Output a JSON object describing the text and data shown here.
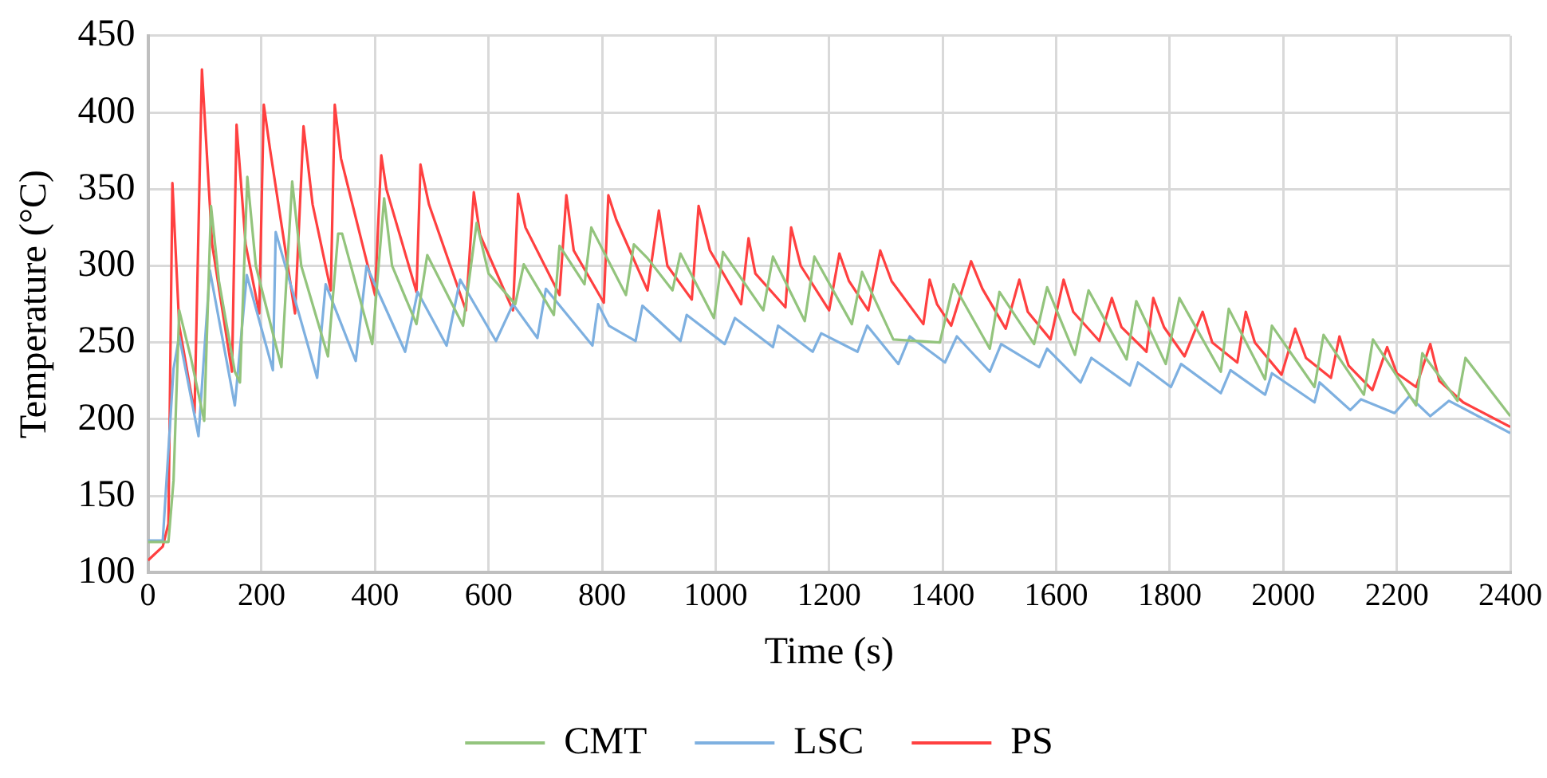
{
  "chart_data": {
    "type": "line",
    "xlabel": "Time (s)",
    "ylabel": "Temperature (°C)",
    "xlim": [
      0,
      2400
    ],
    "xticks": [
      0,
      200,
      400,
      600,
      800,
      1000,
      1200,
      1400,
      1600,
      1800,
      2000,
      2200,
      2400
    ],
    "ylim": [
      100,
      450
    ],
    "yticks": [
      100,
      150,
      200,
      250,
      300,
      350,
      400,
      450
    ],
    "grid": true,
    "legend": "bottom",
    "marker": "none",
    "line_style": "solid",
    "series": [
      {
        "name": "CMT",
        "color": "#93c47d",
        "x": [
          0,
          36,
          45,
          55,
          75,
          99,
          111,
          125,
          153,
          162,
          175,
          190,
          235,
          254,
          270,
          317,
          335,
          342,
          395,
          416,
          430,
          473,
          492,
          555,
          579,
          600,
          647,
          662,
          715,
          725,
          769,
          781,
          842,
          856,
          880,
          924,
          938,
          997,
          1013,
          1084,
          1101,
          1157,
          1174,
          1240,
          1258,
          1313,
          1395,
          1419,
          1483,
          1500,
          1561,
          1584,
          1633,
          1657,
          1724,
          1741,
          1793,
          1817,
          1890,
          1904,
          1968,
          1980,
          2055,
          2071,
          2142,
          2158,
          2234,
          2245,
          2307,
          2321,
          2400
        ],
        "values": [
          120,
          120,
          160,
          271,
          241,
          199,
          339,
          290,
          231,
          224,
          358,
          300,
          234,
          355,
          300,
          241,
          321,
          321,
          249,
          344,
          300,
          262,
          307,
          261,
          328,
          295,
          275,
          301,
          268,
          313,
          288,
          325,
          281,
          314,
          305,
          284,
          308,
          266,
          309,
          271,
          306,
          264,
          306,
          262,
          296,
          252,
          250,
          288,
          246,
          283,
          249,
          286,
          242,
          284,
          239,
          277,
          236,
          279,
          231,
          272,
          226,
          261,
          221,
          255,
          216,
          252,
          209,
          243,
          212,
          240,
          202
        ]
      },
      {
        "name": "LSC",
        "color": "#7eb0e0",
        "x": [
          0,
          26,
          45,
          55,
          89,
          109,
          153,
          174,
          220,
          225,
          298,
          313,
          366,
          385,
          453,
          475,
          526,
          550,
          613,
          643,
          686,
          701,
          783,
          793,
          812,
          859,
          871,
          938,
          949,
          1016,
          1034,
          1101,
          1110,
          1171,
          1186,
          1250,
          1267,
          1322,
          1342,
          1404,
          1425,
          1483,
          1503,
          1570,
          1584,
          1643,
          1662,
          1730,
          1744,
          1802,
          1820,
          1890,
          1907,
          1968,
          1980,
          2055,
          2064,
          2118,
          2137,
          2196,
          2222,
          2259,
          2292,
          2400
        ],
        "values": [
          121,
          121,
          233,
          254,
          189,
          297,
          209,
          294,
          232,
          322,
          227,
          288,
          238,
          300,
          244,
          283,
          248,
          291,
          251,
          275,
          253,
          285,
          248,
          275,
          261,
          251,
          274,
          251,
          268,
          249,
          266,
          247,
          261,
          244,
          256,
          244,
          261,
          236,
          254,
          237,
          254,
          231,
          249,
          234,
          246,
          224,
          240,
          222,
          237,
          221,
          236,
          217,
          232,
          216,
          230,
          211,
          224,
          206,
          213,
          204,
          215,
          202,
          212,
          191
        ]
      },
      {
        "name": "PS",
        "color": "#ff4040",
        "x": [
          0,
          26,
          36,
          43,
          55,
          82,
          95,
          113,
          148,
          156,
          172,
          196,
          204,
          215,
          259,
          274,
          290,
          322,
          329,
          340,
          400,
          411,
          420,
          473,
          480,
          495,
          560,
          574,
          585,
          643,
          652,
          665,
          725,
          737,
          750,
          803,
          811,
          825,
          880,
          900,
          915,
          958,
          970,
          990,
          1045,
          1058,
          1070,
          1123,
          1133,
          1150,
          1200,
          1218,
          1235,
          1269,
          1290,
          1310,
          1366,
          1377,
          1390,
          1415,
          1450,
          1470,
          1511,
          1535,
          1550,
          1590,
          1613,
          1630,
          1676,
          1698,
          1715,
          1759,
          1771,
          1790,
          1826,
          1858,
          1875,
          1919,
          1934,
          1950,
          1997,
          2021,
          2040,
          2084,
          2099,
          2115,
          2157,
          2183,
          2200,
          2234,
          2259,
          2275,
          2317,
          2400
        ],
        "values": [
          108,
          117,
          132,
          354,
          261,
          204,
          428,
          314,
          231,
          392,
          314,
          269,
          405,
          376,
          269,
          391,
          340,
          284,
          405,
          370,
          281,
          372,
          350,
          283,
          366,
          340,
          271,
          348,
          320,
          271,
          347,
          325,
          281,
          346,
          310,
          276,
          346,
          330,
          284,
          336,
          300,
          278,
          339,
          310,
          275,
          318,
          295,
          273,
          325,
          300,
          271,
          308,
          290,
          271,
          310,
          290,
          262,
          291,
          275,
          261,
          303,
          285,
          259,
          291,
          270,
          252,
          291,
          270,
          251,
          279,
          260,
          244,
          279,
          260,
          241,
          270,
          250,
          237,
          270,
          250,
          229,
          259,
          240,
          227,
          254,
          235,
          219,
          247,
          230,
          221,
          249,
          225,
          211,
          195
        ]
      }
    ]
  }
}
